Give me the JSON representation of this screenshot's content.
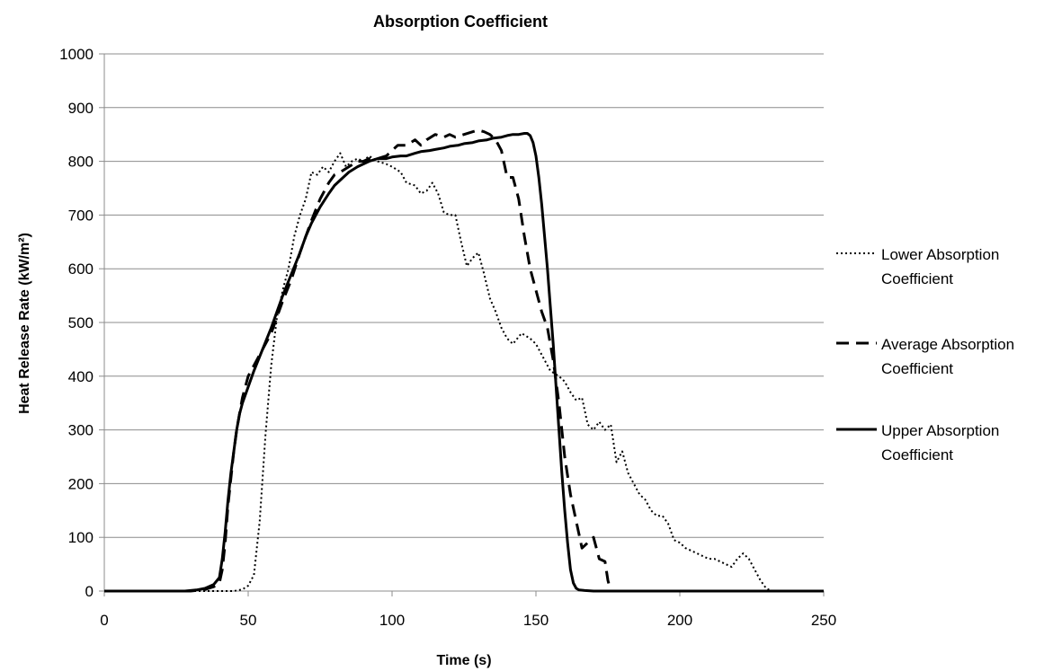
{
  "chart_data": {
    "type": "line",
    "title": "Absorption Coefficient",
    "xlabel": "Time (s)",
    "ylabel": "Heat Release Rate (kW/m²)",
    "xlim": [
      0,
      250
    ],
    "ylim": [
      0,
      1000
    ],
    "xticks": [
      "0",
      "50",
      "100",
      "150",
      "200",
      "250"
    ],
    "yticks": [
      "0",
      "100",
      "200",
      "300",
      "400",
      "500",
      "600",
      "700",
      "800",
      "900",
      "1000"
    ],
    "grid": "horizontal",
    "legend_position": "right",
    "series": [
      {
        "name": "Lower Absorption Coefficient",
        "legend_lines": [
          "Lower Absorption",
          "Coefficient"
        ],
        "style": "dotted",
        "color": "#000000",
        "x": [
          0,
          30,
          40,
          45,
          48,
          50,
          52,
          54,
          56,
          58,
          60,
          62,
          64,
          66,
          68,
          70,
          72,
          74,
          76,
          78,
          80,
          82,
          84,
          86,
          88,
          90,
          92,
          95,
          98,
          100,
          103,
          105,
          108,
          110,
          112,
          114,
          116,
          118,
          120,
          122,
          124,
          126,
          128,
          130,
          132,
          134,
          136,
          138,
          140,
          142,
          145,
          148,
          150,
          152,
          155,
          158,
          160,
          162,
          164,
          166,
          168,
          170,
          172,
          174,
          176,
          178,
          180,
          182,
          184,
          186,
          188,
          190,
          192,
          194,
          196,
          198,
          200,
          202,
          204,
          206,
          208,
          210,
          212,
          214,
          216,
          218,
          220,
          222,
          224,
          226,
          228,
          230,
          232,
          240,
          250
        ],
        "y": [
          0,
          0,
          0,
          0,
          3,
          10,
          30,
          130,
          290,
          420,
          510,
          560,
          600,
          660,
          700,
          730,
          780,
          775,
          790,
          780,
          800,
          815,
          790,
          800,
          805,
          800,
          810,
          800,
          795,
          790,
          780,
          760,
          755,
          740,
          745,
          760,
          740,
          705,
          700,
          700,
          650,
          605,
          620,
          630,
          590,
          545,
          520,
          490,
          470,
          460,
          480,
          470,
          460,
          440,
          410,
          400,
          390,
          370,
          355,
          360,
          310,
          300,
          315,
          300,
          310,
          240,
          260,
          220,
          200,
          180,
          170,
          150,
          140,
          140,
          125,
          95,
          90,
          80,
          75,
          70,
          65,
          60,
          60,
          55,
          50,
          45,
          60,
          70,
          60,
          40,
          20,
          5,
          0,
          0,
          0
        ]
      },
      {
        "name": "Average Absorption Coefficient",
        "legend_lines": [
          "Average Absorption",
          "Coefficient"
        ],
        "style": "dashed",
        "color": "#000000",
        "x": [
          0,
          30,
          35,
          38,
          40,
          41,
          42,
          43,
          44,
          45,
          46,
          47,
          48,
          50,
          52,
          55,
          58,
          60,
          62,
          65,
          68,
          70,
          72,
          75,
          78,
          80,
          82,
          85,
          88,
          90,
          92,
          95,
          98,
          100,
          102,
          105,
          108,
          110,
          112,
          115,
          118,
          120,
          122,
          125,
          128,
          130,
          132,
          134,
          136,
          138,
          140,
          142,
          144,
          146,
          148,
          150,
          152,
          154,
          156,
          158,
          160,
          162,
          164,
          166,
          168,
          170,
          172,
          174,
          175,
          176,
          250
        ],
        "y": [
          0,
          0,
          3,
          8,
          15,
          40,
          90,
          160,
          210,
          260,
          300,
          330,
          360,
          400,
          420,
          450,
          480,
          510,
          540,
          580,
          630,
          660,
          690,
          730,
          760,
          775,
          780,
          790,
          800,
          800,
          805,
          805,
          810,
          820,
          830,
          830,
          840,
          830,
          840,
          850,
          845,
          850,
          845,
          850,
          855,
          858,
          855,
          850,
          840,
          820,
          770,
          770,
          730,
          660,
          600,
          560,
          520,
          490,
          430,
          350,
          250,
          180,
          130,
          80,
          90,
          100,
          60,
          55,
          20,
          0,
          0
        ]
      },
      {
        "name": "Upper Absorption Coefficient",
        "legend_lines": [
          "Upper Absorption",
          "Coefficient"
        ],
        "style": "solid",
        "color": "#000000",
        "x": [
          0,
          28,
          32,
          35,
          38,
          40,
          41,
          42,
          43,
          44,
          45,
          46,
          47,
          48,
          50,
          52,
          55,
          58,
          60,
          62,
          65,
          68,
          70,
          72,
          75,
          78,
          80,
          82,
          85,
          88,
          90,
          92,
          95,
          98,
          100,
          103,
          105,
          108,
          110,
          113,
          115,
          118,
          120,
          123,
          125,
          128,
          130,
          133,
          135,
          138,
          140,
          142,
          144,
          146,
          147,
          148,
          149,
          150,
          151,
          152,
          153,
          154,
          155,
          156,
          157,
          158,
          159,
          160,
          161,
          162,
          163,
          164,
          165,
          167,
          170,
          250
        ],
        "y": [
          0,
          0,
          2,
          5,
          12,
          25,
          60,
          110,
          170,
          220,
          260,
          300,
          330,
          350,
          380,
          410,
          450,
          490,
          520,
          550,
          590,
          630,
          660,
          685,
          715,
          740,
          755,
          765,
          780,
          790,
          795,
          800,
          805,
          805,
          808,
          810,
          810,
          815,
          818,
          820,
          822,
          825,
          828,
          830,
          833,
          835,
          838,
          840,
          843,
          845,
          848,
          850,
          850,
          852,
          852,
          848,
          835,
          810,
          770,
          720,
          660,
          600,
          530,
          460,
          380,
          300,
          220,
          150,
          90,
          40,
          15,
          5,
          2,
          1,
          0,
          0
        ]
      }
    ]
  }
}
